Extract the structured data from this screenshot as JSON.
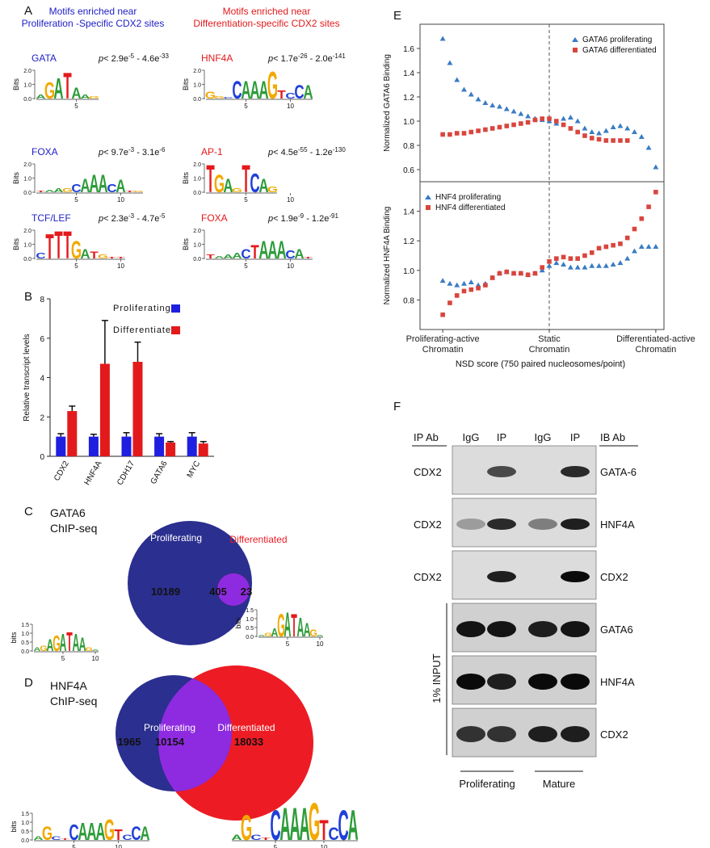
{
  "panel_labels": [
    "A",
    "B",
    "C",
    "D",
    "E",
    "F"
  ],
  "panel_a": {
    "title_left": [
      "Motifs enriched near",
      "Proliferation -Specific CDX2 sites"
    ],
    "title_right": [
      "Motifs enriched near",
      "Differentiation-specific CDX2 sites"
    ],
    "logo_axis": {
      "label": "Bits",
      "yticks": [
        {
          "value": 0,
          "label": "0.0"
        },
        {
          "value": 1,
          "label": "1.0"
        },
        {
          "value": 2,
          "label": "2.0"
        }
      ]
    },
    "motifs": [
      {
        "name": "GATA",
        "p": [
          "p",
          "< 2.9e",
          "-5",
          " - 4.6e",
          "-33"
        ],
        "letters": [
          "A",
          "G",
          "A",
          "T",
          "A",
          "A",
          "G"
        ],
        "bits": [
          0.3,
          1.2,
          1.5,
          1.9,
          0.8,
          0.3,
          0.2
        ],
        "xticks": [
          5
        ]
      },
      {
        "name": "FOXA",
        "p": [
          "p",
          "< 9.7e",
          "-3",
          " - 3.1e",
          "-6"
        ],
        "letters": [
          "T",
          "A",
          "A",
          "G",
          "C",
          "A",
          "A",
          "A",
          "C",
          "A",
          "T",
          "G"
        ],
        "bits": [
          0.1,
          0.2,
          0.3,
          0.3,
          0.6,
          1.0,
          1.3,
          1.3,
          0.6,
          0.9,
          0.1,
          0.1
        ],
        "xticks": [
          5,
          10
        ]
      },
      {
        "name": "TCF/LEF",
        "p": [
          "p",
          "< 2.3e",
          "-3",
          " - 4.7e",
          "-5"
        ],
        "letters": [
          "C",
          "T",
          "T",
          "T",
          "G",
          "A",
          "T",
          "G",
          "T",
          "T"
        ],
        "bits": [
          0.4,
          1.8,
          2.0,
          2.0,
          1.3,
          0.7,
          0.5,
          0.3,
          0.1,
          0.1
        ],
        "xticks": [
          5,
          10
        ]
      },
      {
        "name": "HNF4A",
        "p": [
          "p",
          "< 1.7e",
          "-26",
          " - 2.0e",
          "-141"
        ],
        "letters": [
          "G",
          "G",
          "C",
          "C",
          "A",
          "A",
          "A",
          "G",
          "T",
          "C",
          "C",
          "A"
        ],
        "bits": [
          0.5,
          0.2,
          0.1,
          1.3,
          1.3,
          1.3,
          1.3,
          2.0,
          0.6,
          0.4,
          1.0,
          1.0
        ],
        "xticks": [
          5,
          10
        ]
      },
      {
        "name": "AP-1",
        "p": [
          "p",
          "< 4.5e",
          "-55",
          " - 1.2e",
          "-130"
        ],
        "letters": [
          "T",
          "G",
          "A",
          "G",
          "T",
          "C",
          "A",
          "G"
        ],
        "bits": [
          2.0,
          1.3,
          1.0,
          0.3,
          2.0,
          1.4,
          1.0,
          0.4
        ],
        "xticks": [
          5,
          10
        ]
      },
      {
        "name": "FOXA",
        "p": [
          "p",
          "< 1.9e",
          "-9",
          " - 1.2e",
          "-91"
        ],
        "letters": [
          "T",
          "A",
          "A",
          "A",
          "C",
          "T",
          "A",
          "A",
          "A",
          "C",
          "A",
          "T"
        ],
        "bits": [
          0.3,
          0.2,
          0.3,
          0.4,
          0.7,
          1.0,
          1.3,
          1.3,
          1.3,
          0.6,
          0.7,
          0.1
        ],
        "xticks": [
          5,
          10
        ]
      }
    ]
  },
  "chart_data": [
    {
      "type": "bar",
      "y_label": "Relative transcript levels",
      "categories": [
        "CDX2",
        "HNF4A",
        "CDH17",
        "GATA6",
        "MYC"
      ],
      "series": [
        {
          "name": "Proliferating",
          "color": "#1f1fe0",
          "values": [
            1,
            1,
            1,
            1,
            1
          ],
          "errors": [
            0.15,
            0.12,
            0.2,
            0.15,
            0.2
          ]
        },
        {
          "name": "Differentiated",
          "color": "#e31a1c",
          "values": [
            2.3,
            4.7,
            4.8,
            0.7,
            0.65
          ],
          "errors": [
            0.25,
            2.2,
            1.0,
            0.05,
            0.1
          ]
        }
      ],
      "ylim": [
        0,
        8
      ],
      "yticks": [
        0,
        2,
        4,
        6,
        8
      ]
    },
    {
      "type": "scatter",
      "y_label": "Normalized GATA6 Binding",
      "legend": "top-right",
      "x": [
        0,
        2,
        4,
        6,
        8,
        10,
        12,
        14,
        16,
        18,
        20,
        22,
        24,
        26,
        28,
        30,
        32,
        34,
        36,
        38,
        40,
        42,
        44,
        46,
        48,
        50,
        52,
        54,
        56,
        58,
        60
      ],
      "series": [
        {
          "name": "GATA6 proliferating",
          "marker": "triangle",
          "color": "#3a7cc4",
          "values": [
            1.68,
            1.48,
            1.34,
            1.26,
            1.22,
            1.18,
            1.15,
            1.13,
            1.12,
            1.1,
            1.08,
            1.06,
            1.04,
            1.02,
            1.01,
            1.0,
            0.98,
            1.02,
            1.03,
            1.0,
            0.94,
            0.91,
            0.9,
            0.92,
            0.95,
            0.96,
            0.94,
            0.91,
            0.87,
            0.78,
            0.62
          ]
        },
        {
          "name": "GATA6 differentiated",
          "marker": "square",
          "color": "#d9453d",
          "values": [
            0.89,
            0.89,
            0.9,
            0.9,
            0.91,
            0.92,
            0.93,
            0.94,
            0.95,
            0.96,
            0.97,
            0.98,
            0.99,
            1.01,
            1.02,
            1.02,
            1.0,
            0.97,
            0.94,
            0.91,
            0.88,
            0.86,
            0.85,
            0.84,
            0.84,
            0.84,
            0.84,
            null,
            null,
            null,
            null
          ]
        }
      ],
      "xlim": [
        -6.4,
        62.3
      ],
      "ylim": [
        0.5,
        1.8
      ],
      "yticks": [
        0.6,
        0.8,
        {
          "value": 1,
          "label": "1.0"
        },
        1.2,
        1.4,
        1.6
      ],
      "divider": 30
    },
    {
      "type": "scatter",
      "y_label": "Normalized HNF4A Binding",
      "legend": "top-left",
      "x_label": "NSD score (750 paired nucleosomes/point)",
      "x": [
        0,
        2,
        4,
        6,
        8,
        10,
        12,
        14,
        16,
        18,
        20,
        22,
        24,
        26,
        28,
        30,
        32,
        34,
        36,
        38,
        40,
        42,
        44,
        46,
        48,
        50,
        52,
        54,
        56,
        58,
        60
      ],
      "series": [
        {
          "name": "HNF4 proliferating",
          "marker": "triangle",
          "color": "#3a7cc4",
          "values": [
            0.93,
            0.91,
            0.9,
            0.91,
            0.92,
            0.9,
            0.91,
            0.95,
            0.98,
            0.99,
            0.98,
            0.98,
            0.97,
            0.98,
            1.0,
            1.03,
            1.05,
            1.04,
            1.02,
            1.02,
            1.02,
            1.03,
            1.03,
            1.03,
            1.04,
            1.05,
            1.08,
            1.13,
            1.16,
            1.16,
            1.16
          ]
        },
        {
          "name": "HNF4 differentiated",
          "marker": "square",
          "color": "#d9453d",
          "values": [
            0.7,
            0.78,
            0.83,
            0.86,
            0.87,
            0.88,
            0.9,
            0.95,
            0.98,
            0.99,
            0.98,
            0.98,
            0.97,
            0.98,
            1.02,
            1.06,
            1.08,
            1.09,
            1.08,
            1.08,
            1.1,
            1.12,
            1.15,
            1.16,
            1.17,
            1.18,
            1.22,
            1.28,
            1.35,
            1.43,
            1.53
          ]
        }
      ],
      "xlim": [
        -6.4,
        62.3
      ],
      "ylim": [
        0.6,
        1.6
      ],
      "yticks": [
        0.8,
        {
          "value": 1,
          "label": "1.0"
        },
        1.2,
        1.4
      ],
      "xticks": [
        {
          "value": 0,
          "label": "Proliferating-active Chromatin"
        },
        {
          "value": 30,
          "label": "Static Chromatin"
        },
        {
          "value": 60,
          "label": "Differentiated-active Chromatin"
        }
      ],
      "divider": 30
    }
  ],
  "panel_c": {
    "title": [
      "GATA6",
      "ChIP-seq"
    ],
    "left_name": "Proliferating",
    "right_name": "Differentiated",
    "only_left": 10189,
    "both": 405,
    "only_right": 23,
    "logo_axis": {
      "label": "bits",
      "yticks": [
        {
          "value": 0,
          "label": "0.0"
        },
        0.5,
        {
          "value": 1,
          "label": "1.0"
        },
        1.5
      ]
    },
    "logos": [
      {
        "letters": [
          "A",
          "G",
          "A",
          "G",
          "A",
          "T",
          "A",
          "A",
          "G",
          "A"
        ],
        "bits": [
          0.2,
          0.3,
          0.7,
          0.9,
          1.0,
          1.1,
          1.0,
          0.8,
          0.2,
          0.1
        ],
        "xticks": [
          5,
          10
        ]
      },
      {
        "letters": [
          "A",
          "G",
          "A",
          "G",
          "A",
          "T",
          "A",
          "A",
          "G",
          "A"
        ],
        "bits": [
          0.1,
          0.2,
          0.5,
          1.3,
          1.4,
          1.3,
          1.1,
          0.8,
          0.4,
          0.1
        ],
        "xticks": [
          5,
          10
        ]
      }
    ]
  },
  "panel_d": {
    "title": [
      "HNF4A",
      "ChIP-seq"
    ],
    "left_name": "Proliferating",
    "right_name": "Differentiated",
    "only_left": 1965,
    "both": 10154,
    "only_right": 18033,
    "logos": [
      {
        "letters": [
          "A",
          "G",
          "C",
          "T",
          "C",
          "A",
          "A",
          "A",
          "G",
          "T",
          "C",
          "C",
          "A"
        ],
        "bits": [
          0.2,
          0.8,
          0.2,
          0.1,
          0.9,
          1.0,
          1.0,
          1.0,
          1.2,
          0.6,
          0.3,
          0.8,
          0.8
        ],
        "xticks": [
          5,
          10
        ]
      },
      {
        "letters": [
          "A",
          "G",
          "C",
          "T",
          "C",
          "A",
          "A",
          "A",
          "G",
          "T",
          "C",
          "C",
          "A"
        ],
        "bits": [
          0.2,
          1.0,
          0.2,
          0.1,
          1.2,
          1.3,
          1.3,
          1.3,
          1.5,
          0.8,
          0.5,
          1.2,
          1.2
        ],
        "xticks": [
          5,
          10
        ]
      }
    ]
  },
  "panel_f": {
    "ip_ab": "IP Ab",
    "lanes": [
      "IgG",
      "IP",
      "IgG",
      "IP"
    ],
    "ib_ab": "IB Ab",
    "ip_rows": [
      "CDX2",
      "CDX2",
      "CDX2"
    ],
    "ib_rows": [
      "GATA-6",
      "HNF4A",
      "CDX2",
      "GATA6",
      "HNF4A",
      "CDX2"
    ],
    "input_label": "1% INPUT",
    "groups": [
      "Proliferating",
      "Mature"
    ]
  }
}
